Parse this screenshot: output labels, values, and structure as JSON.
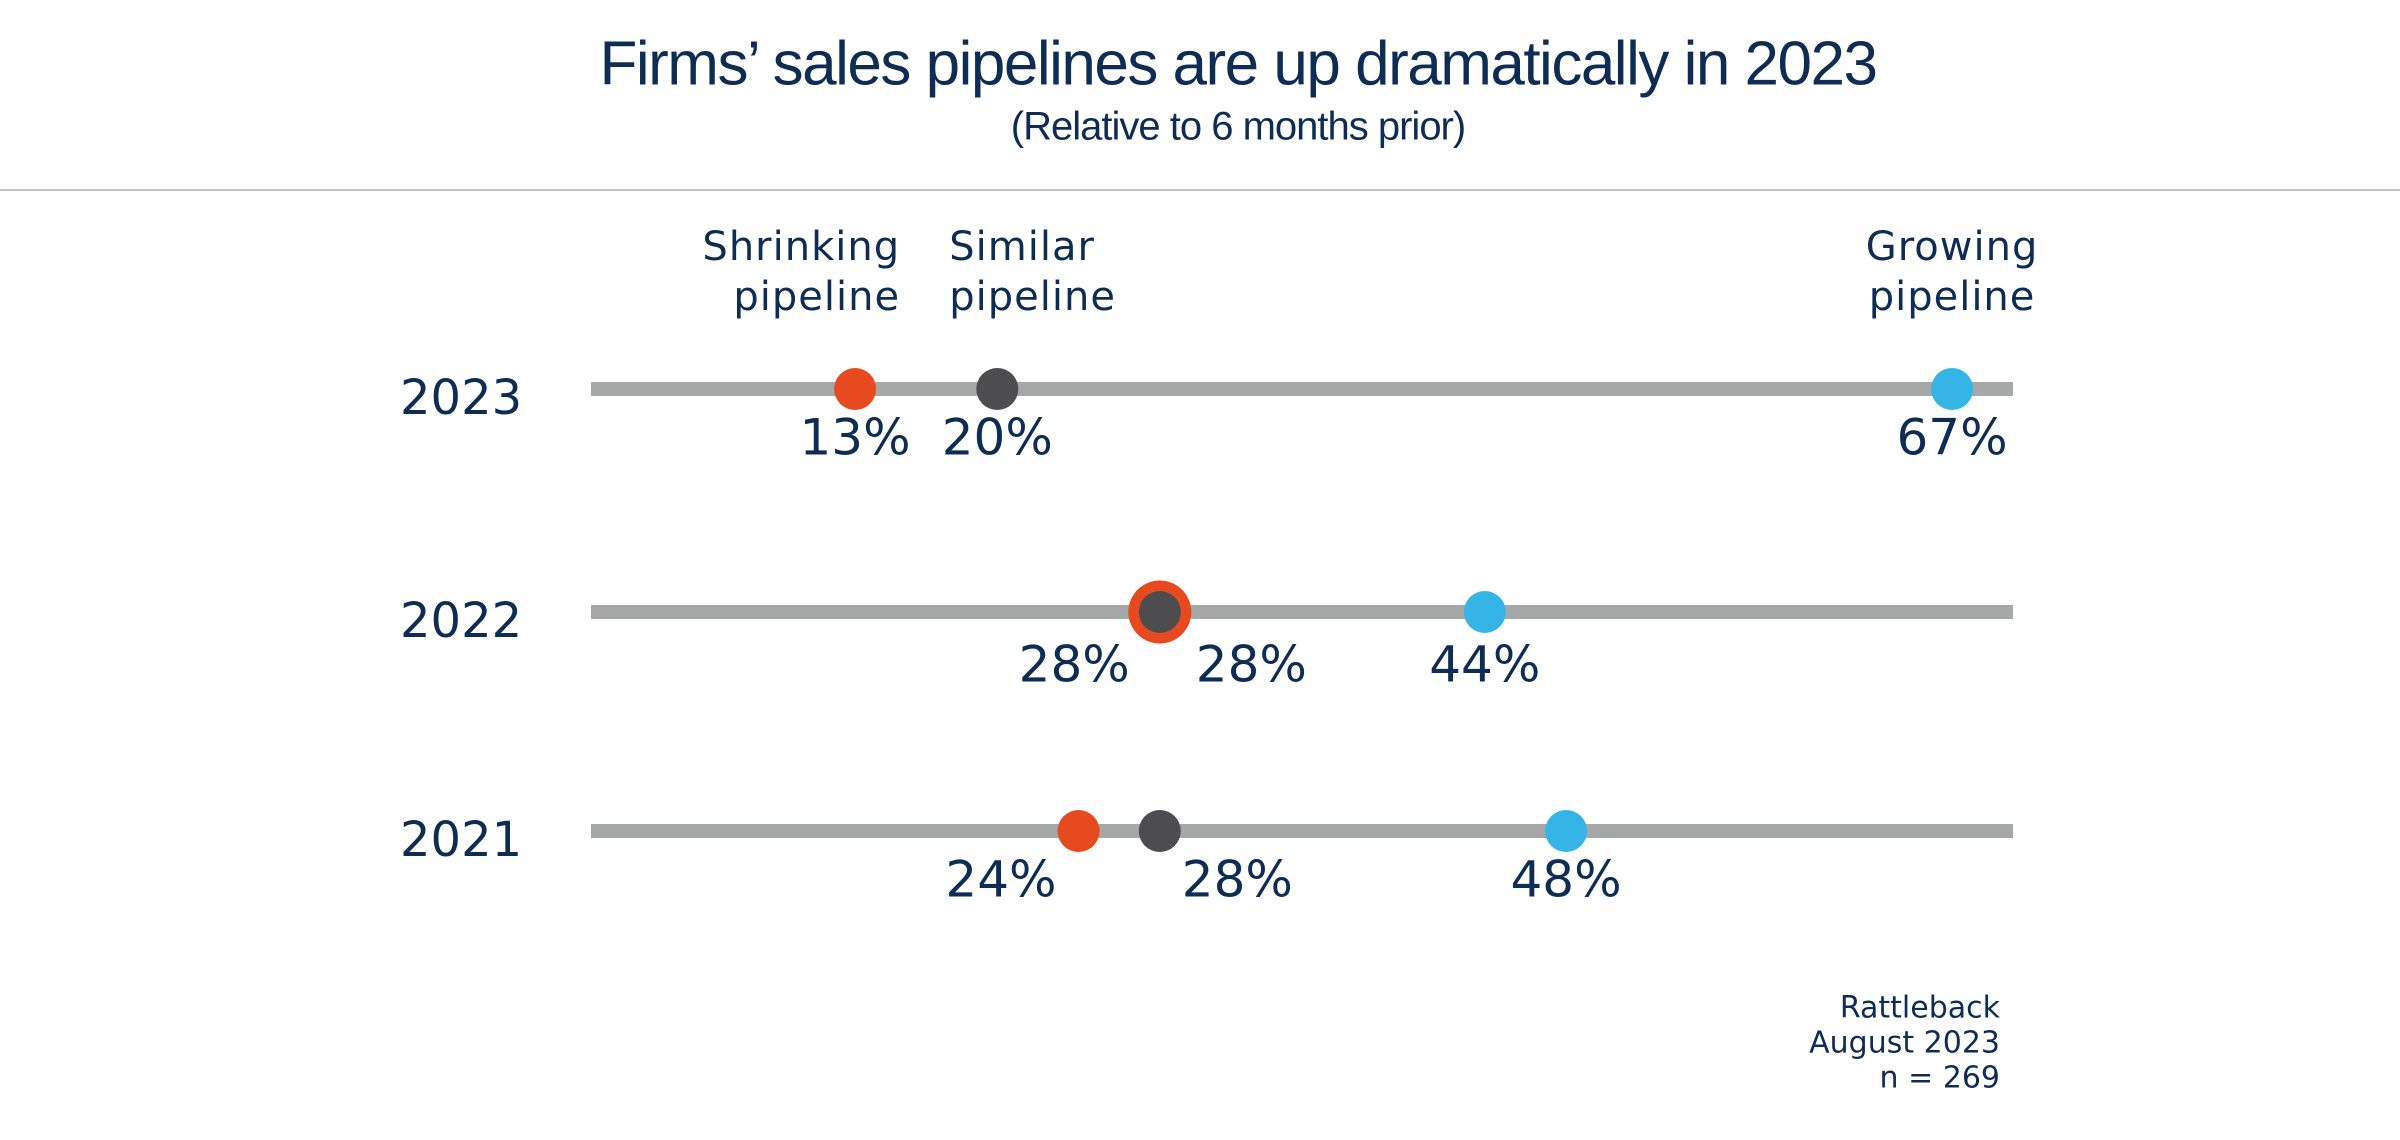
{
  "chart_data": {
    "type": "dot",
    "title": "Firms’ sales pipelines are up dramatically in 2023",
    "subtitle": "(Relative to 6 months prior)",
    "categories": [
      "2023",
      "2022",
      "2021"
    ],
    "series": [
      {
        "name": "Shrinking pipeline",
        "color": "#e84a1f",
        "values": [
          13,
          28,
          24
        ],
        "value_labels": [
          "13%",
          "28%",
          "24%"
        ]
      },
      {
        "name": "Similar pipeline",
        "color": "#4d4d4f",
        "values": [
          20,
          28,
          28
        ],
        "value_labels": [
          "20%",
          "28%",
          "28%"
        ]
      },
      {
        "name": "Growing pipeline",
        "color": "#35b4e6",
        "values": [
          67,
          44,
          48
        ],
        "value_labels": [
          "67%",
          "44%",
          "48%"
        ]
      }
    ],
    "xlim": [
      0,
      70
    ],
    "source": [
      "Rattleback",
      "August 2023",
      "n = 269"
    ]
  }
}
